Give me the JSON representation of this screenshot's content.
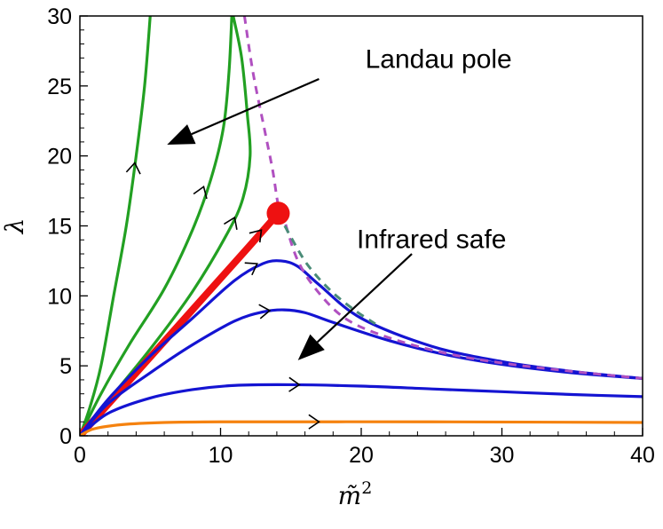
{
  "chart_data": {
    "type": "line",
    "title": "",
    "xlabel": "m̃",
    "xlabel_superscript": "2",
    "ylabel": "λ",
    "xlim": [
      0,
      40
    ],
    "ylim": [
      0,
      30
    ],
    "xticks": [
      0,
      10,
      20,
      30,
      40
    ],
    "yticks": [
      0,
      5,
      10,
      15,
      20,
      25,
      30
    ],
    "xtick_labels": [
      "0",
      "10",
      "20",
      "30",
      "40"
    ],
    "ytick_labels": [
      "0",
      "5",
      "10",
      "15",
      "20",
      "25",
      "30"
    ],
    "grid": false,
    "colors": {
      "green": "#22a022",
      "blue": "#1414d2",
      "orange": "#f5820f",
      "red": "#ee1111",
      "purple_dashed": "#b050c0",
      "teal_dashed": "#4a8c78",
      "arrow": "#000000"
    },
    "annotations": [
      {
        "text": "Landau pole",
        "x": 25.5,
        "y": 26.3,
        "arrow_from": [
          17.0,
          25.5
        ],
        "arrow_to": [
          6.2,
          20.8
        ]
      },
      {
        "text": "Infrared safe",
        "x": 25.0,
        "y": 13.4,
        "arrow_from": [
          23.6,
          13.0
        ],
        "arrow_to": [
          15.5,
          5.4
        ]
      }
    ],
    "fixed_point": {
      "x": 14.1,
      "y": 15.9
    },
    "series": [
      {
        "color": "green",
        "width": 3.2,
        "points": [
          [
            0,
            0
          ],
          [
            0.7,
            2
          ],
          [
            1.5,
            5
          ],
          [
            2.4,
            10
          ],
          [
            3.3,
            15
          ],
          [
            4.0,
            20
          ],
          [
            4.6,
            25
          ],
          [
            5.0,
            30
          ]
        ],
        "arrow_at": [
          3.9,
          19.5
        ]
      },
      {
        "color": "green",
        "width": 3.2,
        "points": [
          [
            0,
            0
          ],
          [
            1.5,
            3
          ],
          [
            3.5,
            6.5
          ],
          [
            6,
            10.5
          ],
          [
            8,
            14.7
          ],
          [
            9.3,
            18.3
          ],
          [
            10.2,
            22
          ],
          [
            10.6,
            26
          ],
          [
            10.8,
            30
          ]
        ],
        "arrow_at": [
          8.8,
          17.8
        ]
      },
      {
        "color": "green",
        "width": 3.2,
        "points": [
          [
            0,
            0
          ],
          [
            2,
            2.5
          ],
          [
            5,
            6.2
          ],
          [
            8,
            10.3
          ],
          [
            10.5,
            14.5
          ],
          [
            11.6,
            17
          ],
          [
            12.1,
            20
          ],
          [
            11.9,
            23
          ],
          [
            11.5,
            27
          ],
          [
            10.9,
            30
          ]
        ],
        "arrow_at": [
          11.0,
          15.6
        ]
      },
      {
        "color": "red",
        "width": 8,
        "points": [
          [
            0,
            0
          ],
          [
            4,
            4.5
          ],
          [
            8,
            9
          ],
          [
            12,
            13.5
          ],
          [
            14.1,
            15.9
          ]
        ],
        "arrow_at": [
          12.9,
          14.7
        ]
      },
      {
        "color": "blue",
        "width": 3.2,
        "points": [
          [
            0,
            0
          ],
          [
            2,
            2.6
          ],
          [
            5,
            5.7
          ],
          [
            8,
            8.4
          ],
          [
            11,
            11.1
          ],
          [
            13,
            12.3
          ],
          [
            14.3,
            12.5
          ],
          [
            15.5,
            12.1
          ],
          [
            17,
            10.8
          ],
          [
            20,
            8.4
          ],
          [
            25,
            6.4
          ],
          [
            30,
            5.3
          ],
          [
            35,
            4.6
          ],
          [
            40,
            4.1
          ]
        ],
        "arrow_at": [
          12.6,
          12.3
        ]
      },
      {
        "color": "blue",
        "width": 3.2,
        "points": [
          [
            0,
            0
          ],
          [
            2,
            2.3
          ],
          [
            5,
            4.5
          ],
          [
            8,
            6.5
          ],
          [
            11,
            8.2
          ],
          [
            13,
            8.85
          ],
          [
            14.5,
            9.0
          ],
          [
            16,
            8.8
          ],
          [
            18,
            8.1
          ],
          [
            22,
            6.8
          ],
          [
            26,
            5.8
          ],
          [
            30,
            5.1
          ],
          [
            35,
            4.5
          ],
          [
            40,
            4.1
          ]
        ],
        "arrow_at": [
          13.5,
          8.95
        ]
      },
      {
        "color": "blue",
        "width": 3.2,
        "points": [
          [
            0,
            0
          ],
          [
            2,
            1.6
          ],
          [
            5,
            2.7
          ],
          [
            8,
            3.3
          ],
          [
            11,
            3.6
          ],
          [
            15,
            3.65
          ],
          [
            20,
            3.55
          ],
          [
            25,
            3.35
          ],
          [
            30,
            3.15
          ],
          [
            35,
            2.95
          ],
          [
            40,
            2.8
          ]
        ],
        "arrow_at": [
          15.6,
          3.65
        ]
      },
      {
        "color": "orange",
        "width": 3.2,
        "points": [
          [
            0,
            0
          ],
          [
            1,
            0.5
          ],
          [
            3,
            0.8
          ],
          [
            6,
            0.95
          ],
          [
            10,
            1.0
          ],
          [
            17,
            1.0
          ],
          [
            25,
            1.0
          ],
          [
            40,
            0.95
          ]
        ],
        "arrow_at": [
          17.0,
          1.0
        ]
      },
      {
        "color": "purple_dashed",
        "width": 3,
        "dashed": true,
        "points": [
          [
            11.7,
            30
          ],
          [
            12.3,
            26
          ],
          [
            13.1,
            22
          ],
          [
            13.7,
            19
          ],
          [
            14.1,
            16.5
          ],
          [
            14.5,
            15.5
          ],
          [
            15.5,
            12.5
          ],
          [
            17,
            10.2
          ],
          [
            19,
            8.3
          ],
          [
            22,
            7.0
          ],
          [
            26,
            5.9
          ],
          [
            30,
            5.2
          ],
          [
            35,
            4.6
          ],
          [
            40,
            4.1
          ]
        ]
      },
      {
        "color": "teal_dashed",
        "width": 3,
        "dashed": true,
        "points": [
          [
            14.1,
            15.9
          ],
          [
            15.0,
            14.2
          ],
          [
            16.2,
            12.2
          ],
          [
            17.8,
            10.4
          ],
          [
            19.5,
            9.0
          ],
          [
            21,
            8.0
          ]
        ]
      }
    ]
  }
}
